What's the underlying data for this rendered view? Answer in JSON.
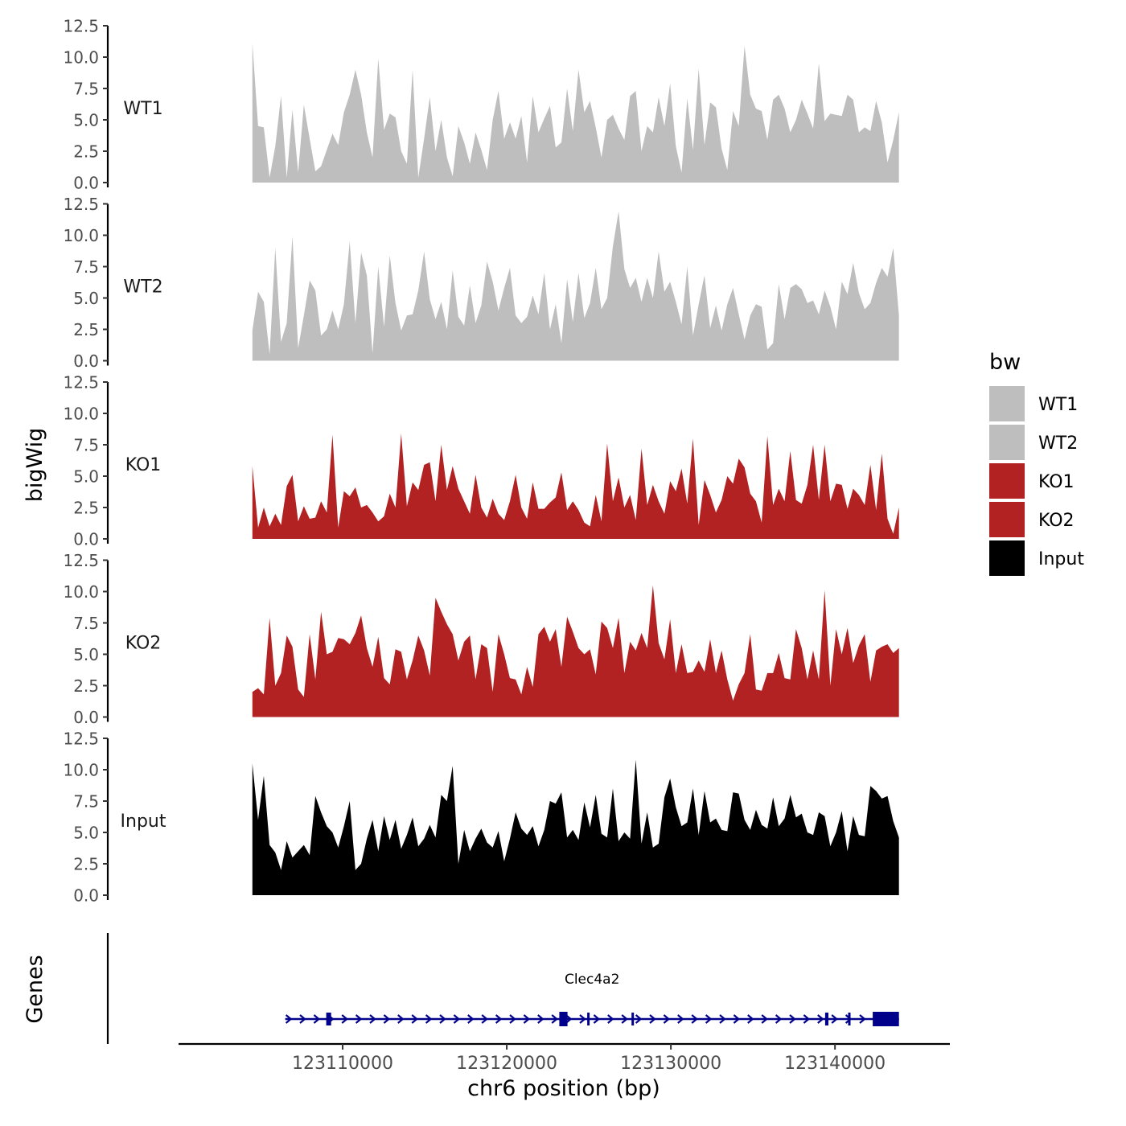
{
  "chart_data": {
    "type": "area",
    "title": "",
    "xlabel": "chr6 position (bp)",
    "ylabel": "bigWig",
    "xlim": [
      123100000,
      123147000
    ],
    "ylim": [
      0,
      12.5
    ],
    "data_xrange": [
      123104500,
      123143900
    ],
    "y_ticks": [
      "0.0",
      "2.5",
      "5.0",
      "7.5",
      "10.0",
      "12.5"
    ],
    "x_ticks": [
      {
        "value": 123110000,
        "label": "123110000"
      },
      {
        "value": 123120000,
        "label": "123120000"
      },
      {
        "value": 123130000,
        "label": "123130000"
      },
      {
        "value": 123140000,
        "label": "123140000"
      }
    ],
    "legend": {
      "title": "bw",
      "position": "right",
      "entries": [
        {
          "label": "WT1",
          "color": "#bebebe"
        },
        {
          "label": "WT2",
          "color": "#bebebe"
        },
        {
          "label": "KO1",
          "color": "#b22222"
        },
        {
          "label": "KO2",
          "color": "#b22222"
        },
        {
          "label": "Input",
          "color": "#000000"
        }
      ]
    },
    "series": [
      {
        "name": "WT1",
        "color": "#bebebe",
        "values": [
          11.1,
          4.5,
          4.4,
          0.4,
          2.9,
          6.9,
          0.4,
          5.8,
          0.8,
          6.2,
          3.5,
          0.9,
          1.3,
          2.6,
          3.9,
          3.0,
          5.6,
          7.0,
          9.0,
          7.0,
          4.0,
          2.0,
          9.9,
          4.2,
          5.5,
          5.2,
          2.5,
          1.5,
          9.0,
          0.4,
          3.5,
          6.8,
          2.5,
          5.0,
          2.0,
          0.5,
          4.5,
          3.2,
          1.5,
          4.0,
          2.6,
          1.0,
          5.0,
          7.3,
          3.5,
          4.8,
          3.5,
          5.3,
          1.6,
          6.9,
          4.0,
          5.1,
          6.1,
          2.8,
          3.2,
          7.5,
          4.1,
          9.0,
          5.6,
          6.5,
          4.4,
          2.0,
          5.0,
          5.4,
          4.3,
          3.4,
          6.9,
          7.3,
          2.5,
          4.5,
          4.0,
          6.8,
          4.5,
          7.9,
          2.9,
          0.8,
          6.7,
          2.6,
          9.1,
          3.0,
          6.4,
          6.0,
          2.7,
          1.0,
          5.7,
          4.5,
          10.9,
          7.0,
          5.9,
          5.7,
          3.4,
          6.6,
          7.0,
          5.9,
          4.0,
          5.0,
          6.6,
          5.5,
          4.3,
          9.5,
          4.9,
          5.5,
          5.4,
          5.3,
          7.0,
          6.6,
          4.0,
          4.4,
          4.1,
          6.5,
          4.8,
          1.6,
          3.4,
          5.6
        ]
      },
      {
        "name": "WT2",
        "color": "#bebebe",
        "values": [
          2.4,
          5.5,
          4.7,
          0.5,
          9.0,
          1.5,
          3.0,
          9.9,
          1.0,
          3.6,
          6.4,
          5.6,
          2.0,
          2.5,
          4.0,
          2.5,
          4.5,
          9.5,
          3.0,
          8.6,
          6.8,
          0.6,
          7.5,
          2.7,
          8.4,
          4.6,
          2.4,
          3.6,
          3.7,
          5.6,
          8.7,
          4.9,
          3.3,
          4.7,
          2.5,
          7.2,
          3.5,
          2.8,
          6.0,
          3.0,
          4.4,
          7.9,
          6.3,
          4.0,
          5.8,
          7.4,
          3.6,
          3.0,
          3.5,
          5.2,
          3.7,
          7.0,
          2.5,
          4.5,
          1.4,
          6.5,
          3.1,
          7.0,
          3.4,
          4.6,
          7.4,
          4.1,
          5.0,
          9.1,
          11.9,
          7.3,
          5.8,
          6.6,
          4.7,
          6.6,
          5.0,
          8.7,
          5.5,
          6.3,
          4.7,
          2.9,
          7.5,
          2.0,
          4.5,
          6.8,
          2.6,
          4.4,
          2.4,
          4.5,
          5.8,
          3.7,
          1.7,
          3.6,
          4.5,
          4.3,
          0.9,
          1.4,
          6.1,
          3.3,
          5.8,
          6.1,
          5.7,
          4.6,
          4.8,
          3.7,
          5.6,
          4.3,
          2.5,
          6.3,
          5.3,
          7.8,
          5.4,
          4.1,
          4.6,
          6.2,
          7.4,
          6.7,
          9.0,
          3.6
        ]
      },
      {
        "name": "KO1",
        "color": "#b22222",
        "values": [
          5.8,
          0.9,
          2.5,
          1.0,
          2.0,
          1.1,
          4.2,
          5.1,
          1.4,
          2.6,
          1.6,
          1.7,
          3.0,
          2.1,
          8.3,
          0.9,
          3.8,
          3.4,
          4.1,
          2.5,
          2.7,
          2.1,
          1.4,
          1.8,
          3.6,
          2.5,
          8.4,
          2.6,
          4.5,
          3.9,
          5.9,
          6.1,
          3.0,
          7.5,
          3.9,
          5.8,
          4.0,
          3.0,
          2.0,
          5.1,
          2.5,
          1.7,
          3.2,
          2.0,
          1.5,
          3.0,
          5.1,
          2.5,
          1.6,
          4.5,
          2.4,
          2.4,
          2.9,
          3.3,
          5.3,
          2.3,
          3.0,
          2.3,
          1.3,
          1.0,
          3.5,
          1.4,
          7.6,
          3.0,
          4.9,
          2.5,
          3.5,
          1.5,
          7.2,
          2.7,
          4.3,
          3.0,
          2.0,
          4.6,
          3.8,
          5.6,
          2.8,
          8.0,
          1.1,
          4.7,
          3.5,
          2.1,
          3.1,
          5.0,
          4.4,
          6.4,
          5.7,
          3.6,
          3.0,
          1.3,
          8.2,
          2.7,
          4.0,
          3.0,
          7.0,
          3.1,
          2.8,
          4.3,
          7.5,
          3.1,
          7.5,
          3.0,
          4.4,
          4.3,
          2.4,
          4.0,
          3.5,
          2.7,
          5.9,
          2.3,
          6.8,
          1.6,
          0.4,
          2.5
        ]
      },
      {
        "name": "KO2",
        "color": "#b22222",
        "values": [
          2.0,
          2.3,
          1.8,
          7.9,
          2.5,
          3.5,
          6.5,
          5.6,
          2.2,
          1.6,
          6.6,
          3.0,
          8.4,
          5.0,
          5.2,
          6.3,
          6.2,
          5.8,
          6.7,
          8.1,
          5.5,
          4.0,
          6.4,
          3.1,
          2.6,
          5.4,
          5.2,
          3.0,
          4.5,
          6.5,
          5.3,
          3.3,
          9.5,
          8.4,
          7.4,
          6.6,
          4.5,
          6.0,
          6.5,
          3.0,
          5.8,
          5.5,
          2.0,
          6.6,
          5.0,
          3.1,
          3.0,
          1.8,
          4.0,
          2.4,
          6.6,
          7.2,
          6.0,
          7.0,
          4.0,
          8.0,
          6.8,
          5.5,
          5.0,
          5.4,
          3.4,
          7.6,
          7.1,
          5.5,
          7.9,
          3.5,
          6.0,
          5.3,
          6.7,
          5.5,
          10.5,
          5.9,
          4.6,
          7.8,
          3.5,
          5.8,
          3.5,
          3.6,
          4.5,
          3.6,
          6.2,
          3.5,
          5.3,
          3.0,
          1.3,
          2.6,
          3.5,
          6.6,
          2.2,
          2.1,
          3.5,
          3.5,
          5.1,
          3.1,
          3.0,
          7.0,
          5.5,
          3.0,
          5.3,
          3.0,
          10.1,
          2.5,
          7.0,
          5.0,
          7.1,
          4.3,
          5.7,
          6.6,
          2.8,
          5.3,
          5.6,
          5.8,
          5.1,
          5.5
        ]
      },
      {
        "name": "Input",
        "color": "#000000",
        "values": [
          10.5,
          6.0,
          9.5,
          4.0,
          3.4,
          2.0,
          4.3,
          3.0,
          3.5,
          4.0,
          3.2,
          7.9,
          6.6,
          5.5,
          5.0,
          3.8,
          5.5,
          7.5,
          2.0,
          2.5,
          4.5,
          6.0,
          3.5,
          6.3,
          4.4,
          6.0,
          3.7,
          4.8,
          6.2,
          3.9,
          4.5,
          5.6,
          4.6,
          8.0,
          7.5,
          10.3,
          2.5,
          5.2,
          3.5,
          4.5,
          5.3,
          4.2,
          3.8,
          5.1,
          2.7,
          4.5,
          6.6,
          5.3,
          4.8,
          5.5,
          3.9,
          5.2,
          7.5,
          7.3,
          8.2,
          4.6,
          5.2,
          4.4,
          7.4,
          5.4,
          8.0,
          4.9,
          4.6,
          8.5,
          4.3,
          5.0,
          4.5,
          10.8,
          4.1,
          6.6,
          3.8,
          4.1,
          7.8,
          9.3,
          7.0,
          5.5,
          5.8,
          8.5,
          4.8,
          8.3,
          5.8,
          6.1,
          5.2,
          5.1,
          8.2,
          8.1,
          6.0,
          5.2,
          6.8,
          5.6,
          5.3,
          7.8,
          5.5,
          6.1,
          8.0,
          6.2,
          6.5,
          5.0,
          4.8,
          6.6,
          6.3,
          3.9,
          5.0,
          6.7,
          3.5,
          6.3,
          4.8,
          4.7,
          8.7,
          8.3,
          7.7,
          7.9,
          5.9,
          4.6
        ]
      }
    ],
    "genes_track": {
      "label": "Genes",
      "gene_name": "Clec4a2",
      "color": "#00008b",
      "strand": "+",
      "gene_start": 123106500,
      "gene_end": 123143900,
      "exons": [
        {
          "start": 123109000,
          "end": 123109300,
          "type": "coding"
        },
        {
          "start": 123123200,
          "end": 123123700,
          "type": "coding"
        },
        {
          "start": 123124900,
          "end": 123125000,
          "type": "coding"
        },
        {
          "start": 123127600,
          "end": 123127700,
          "type": "coding"
        },
        {
          "start": 123139400,
          "end": 123139600,
          "type": "coding"
        },
        {
          "start": 123140800,
          "end": 123140900,
          "type": "coding"
        },
        {
          "start": 123142300,
          "end": 123143900,
          "type": "coding"
        }
      ]
    }
  }
}
